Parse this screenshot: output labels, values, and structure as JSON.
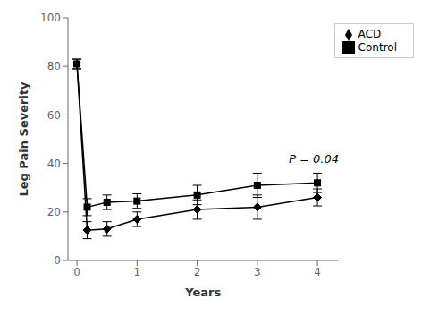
{
  "chart_data": {
    "type": "line",
    "title": "",
    "xlabel": "Years",
    "ylabel": "Leg Pain Severity",
    "xlim": [
      -0.15,
      4.35
    ],
    "xticks": [
      0,
      1,
      2,
      3,
      4
    ],
    "ylim": [
      0,
      100
    ],
    "yticks": [
      0,
      20,
      40,
      60,
      80,
      100
    ],
    "grid": false,
    "legend": "upper right",
    "annotations": [
      {
        "text": "P = 0.04",
        "x": 3.45,
        "y": 42
      }
    ],
    "series": [
      {
        "name": "Control",
        "color": "#000000",
        "marker": "square",
        "line_style": "solid",
        "x": [
          0,
          0.17,
          0.5,
          1,
          2,
          3,
          4
        ],
        "values": [
          81,
          22,
          24,
          24.5,
          27,
          31,
          32
        ],
        "yerr": [
          2,
          3.5,
          3,
          3,
          4,
          5,
          4
        ]
      },
      {
        "name": "ACD",
        "color": "#000000",
        "marker": "diamond",
        "line_style": "solid",
        "x": [
          0,
          0.17,
          0.5,
          1,
          2,
          3,
          4
        ],
        "values": [
          81,
          12.5,
          13,
          17,
          21,
          22,
          26
        ],
        "yerr": [
          2,
          3.5,
          3,
          3,
          4,
          5,
          3.5
        ]
      }
    ]
  }
}
